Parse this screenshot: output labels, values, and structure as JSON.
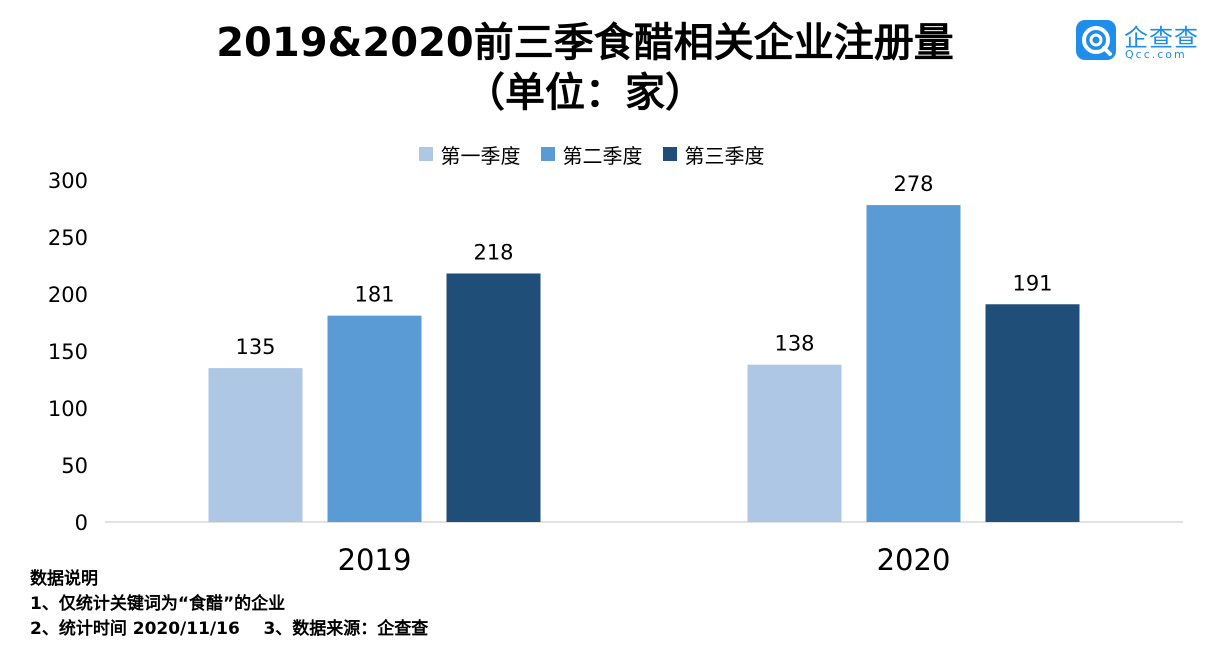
{
  "title_line1": "2019&2020前三季食醋相关企业注册量",
  "title_line2": "（单位：家）",
  "logo": {
    "text": "企查查",
    "sub": "Qcc.com"
  },
  "chart_data": {
    "type": "bar",
    "categories": [
      "2019",
      "2020"
    ],
    "series": [
      {
        "name": "第一季度",
        "color": "#aec7e5",
        "values": [
          135,
          138
        ]
      },
      {
        "name": "第二季度",
        "color": "#5b9bd5",
        "values": [
          181,
          278
        ]
      },
      {
        "name": "第三季度",
        "color": "#1f4e79",
        "values": [
          218,
          191
        ]
      }
    ],
    "ylim": [
      0,
      300
    ],
    "yticks": [
      "0",
      "50",
      "100",
      "150",
      "200",
      "250",
      "300"
    ],
    "grid": false,
    "legend_position": "top"
  },
  "notes": {
    "heading": "数据说明",
    "line1": "1、仅统计关键词为“食醋”的企业",
    "line2": "2、统计时间 2020/11/16    3、数据来源：企查查"
  }
}
